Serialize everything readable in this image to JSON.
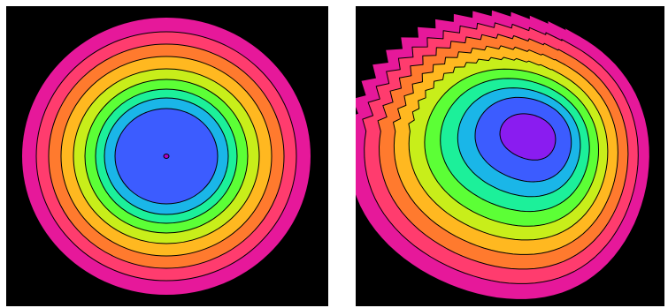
{
  "figure": {
    "panels": [
      {
        "id": "left",
        "description_tag": "concentric-contour-plot",
        "background": "#000000",
        "band_colors": [
          "#e6189a",
          "#ff3c6e",
          "#ff7a2e",
          "#ffb820",
          "#c8ee1a",
          "#5cff36",
          "#1cf09a",
          "#1ab6e8",
          "#3c5cff"
        ],
        "contour_line_color": "#000000",
        "center_marker_color": "#b000c8"
      },
      {
        "id": "right",
        "description_tag": "distorted-contour-plot",
        "background": "#000000",
        "band_colors": [
          "#e6189a",
          "#ff3c6e",
          "#ff7a2e",
          "#ffb820",
          "#c8ee1a",
          "#5cff36",
          "#1cf09a",
          "#1ab6e8",
          "#3c5cff",
          "#8a1cf0"
        ],
        "contour_line_color": "#000000"
      }
    ]
  }
}
